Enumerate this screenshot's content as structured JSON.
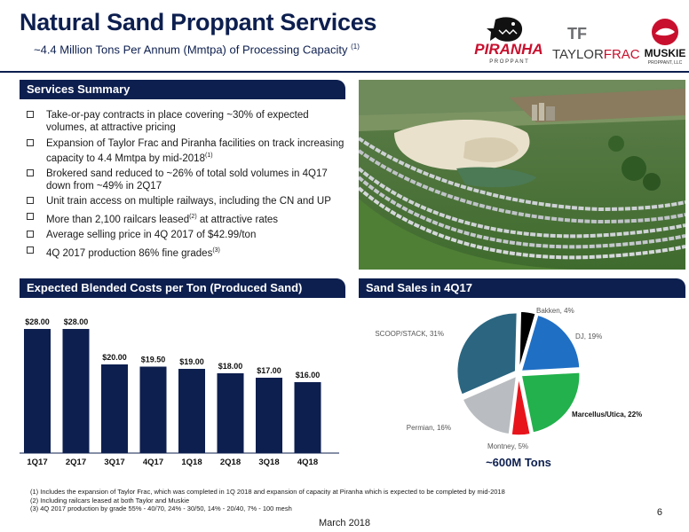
{
  "header": {
    "title": "Natural Sand Proppant Services",
    "subtitle": "~4.4 Million Tons Per Annum (Mmtpa) of Processing Capacity",
    "subtitle_note": "(1)"
  },
  "logos": {
    "piranha": {
      "name": "PIRANHA",
      "tag": "P R O P P A N T"
    },
    "taylorfrac": {
      "mark": "TF",
      "name_taylor": "TAYLOR",
      "name_frac": "FRAC"
    },
    "muskie": {
      "name": "MUSKIE",
      "tag": "PROPPANT, LLC"
    }
  },
  "services": {
    "heading": "Services Summary",
    "items": [
      {
        "text": "Take-or-pay contracts in place covering ~30% of expected volumes, at attractive pricing",
        "tail": "",
        "note": ""
      },
      {
        "text": "Expansion of Taylor Frac and Piranha facilities on track increasing capacity to 4.4 Mmtpa by mid-2018",
        "note": "(1)",
        "tail": ""
      },
      {
        "text": "Brokered sand reduced to ~26% of total sold volumes in 4Q17 down from ~49% in 2Q17",
        "note": "",
        "tail": ""
      },
      {
        "text": "Unit train access on multiple railways, including the CN and UP",
        "note": "",
        "tail": ""
      },
      {
        "text": "More than 2,100 railcars leased",
        "note": "(2)",
        "tail": " at attractive rates"
      },
      {
        "text": "Average selling price in 4Q 2017 of $42.99/ton",
        "note": "",
        "tail": ""
      },
      {
        "text": "4Q 2017 production 86% fine grades",
        "note": "(3)",
        "tail": ""
      }
    ]
  },
  "costs": {
    "heading": "Expected Blended Costs per Ton (Produced Sand)"
  },
  "sales": {
    "heading": "Sand Sales in 4Q17"
  },
  "chart_data": [
    {
      "type": "bar",
      "categories": [
        "1Q17",
        "2Q17",
        "3Q17",
        "4Q17",
        "1Q18",
        "2Q18",
        "3Q18",
        "4Q18"
      ],
      "values": [
        28.0,
        28.0,
        20.0,
        19.5,
        19.0,
        18.0,
        17.0,
        16.0
      ],
      "value_labels": [
        "$28.00",
        "$28.00",
        "$20.00",
        "$19.50",
        "$19.00",
        "$18.00",
        "$17.00",
        "$16.00"
      ],
      "ylim": [
        0,
        28
      ],
      "color": "#0d1f4f",
      "grid": false
    },
    {
      "type": "pie",
      "labels": [
        "Bakken, 4%",
        "DJ, 19%",
        "Marcellus/Utica, 22%",
        "Montney, 5%",
        "Permian, 16%",
        "SCOOP/STACK, 31%"
      ],
      "values": [
        4,
        19,
        22,
        5,
        16,
        31
      ],
      "colors": [
        "#000000",
        "#1f6fc5",
        "#22b14c",
        "#e8141b",
        "#b9bcc0",
        "#2b6580"
      ],
      "center_note": "~600M Tons"
    }
  ],
  "footnotes": [
    "(1) Includes the expansion of Taylor Frac, which was completed in 1Q 2018 and expansion of capacity at Piranha which is expected to be completed by mid-2018",
    "(2) Including railcars leased at both Taylor and Muskie",
    "(3) 4Q 2017 production by grade 55% - 40/70, 24% - 30/50, 14% - 20/40, 7% - 100 mesh"
  ],
  "page_number": "6",
  "date": "March 2018"
}
